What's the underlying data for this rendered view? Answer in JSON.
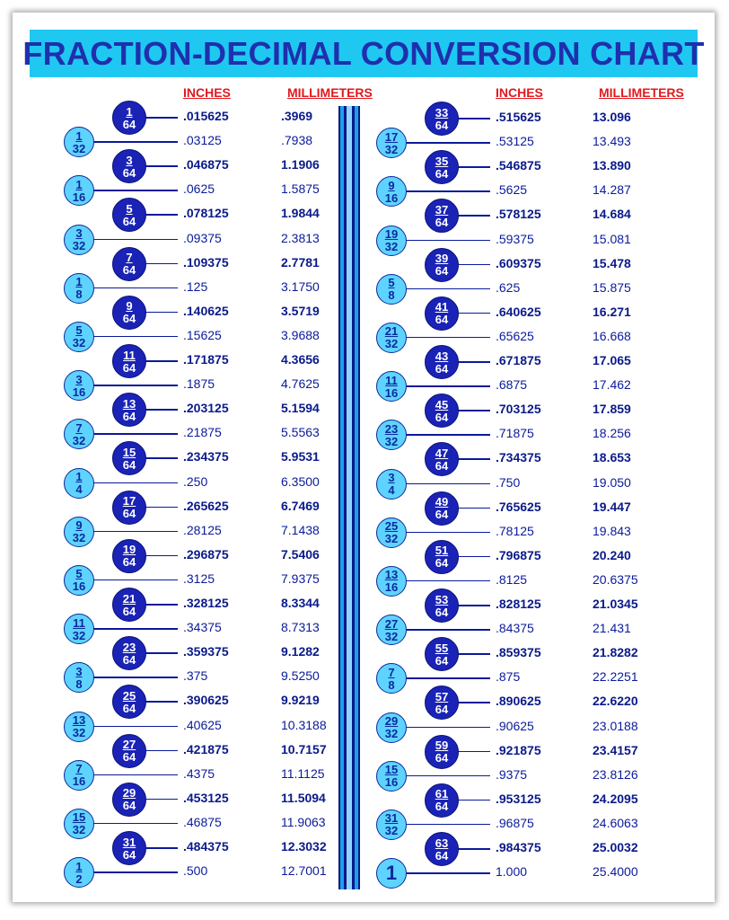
{
  "title": "FRACTION-DECIMAL CONVERSION CHART",
  "headers": {
    "inches": "INCHES",
    "millimeters": "MILLIMETERS"
  },
  "colors": {
    "banner": "#1ec8f0",
    "title": "#1f2fae",
    "header": "#e0191f",
    "odd64_circle": "#1a23b5",
    "other_circle": "#5fd3ff",
    "text": "#0a1a9a"
  },
  "left_rows": [
    {
      "num": "1",
      "den": "64",
      "inches": ".015625",
      "mm": ".3969",
      "bold": true
    },
    {
      "num": "1",
      "den": "32",
      "inches": ".03125",
      "mm": ".7938",
      "bold": false
    },
    {
      "num": "3",
      "den": "64",
      "inches": ".046875",
      "mm": "1.1906",
      "bold": true
    },
    {
      "num": "1",
      "den": "16",
      "inches": ".0625",
      "mm": "1.5875",
      "bold": false
    },
    {
      "num": "5",
      "den": "64",
      "inches": ".078125",
      "mm": "1.9844",
      "bold": true
    },
    {
      "num": "3",
      "den": "32",
      "inches": ".09375",
      "mm": "2.3813",
      "bold": false
    },
    {
      "num": "7",
      "den": "64",
      "inches": ".109375",
      "mm": "2.7781",
      "bold": true
    },
    {
      "num": "1",
      "den": "8",
      "inches": ".125",
      "mm": "3.1750",
      "bold": false
    },
    {
      "num": "9",
      "den": "64",
      "inches": ".140625",
      "mm": "3.5719",
      "bold": true
    },
    {
      "num": "5",
      "den": "32",
      "inches": ".15625",
      "mm": "3.9688",
      "bold": false
    },
    {
      "num": "11",
      "den": "64",
      "inches": ".171875",
      "mm": "4.3656",
      "bold": true
    },
    {
      "num": "3",
      "den": "16",
      "inches": ".1875",
      "mm": "4.7625",
      "bold": false
    },
    {
      "num": "13",
      "den": "64",
      "inches": ".203125",
      "mm": "5.1594",
      "bold": true
    },
    {
      "num": "7",
      "den": "32",
      "inches": ".21875",
      "mm": "5.5563",
      "bold": false
    },
    {
      "num": "15",
      "den": "64",
      "inches": ".234375",
      "mm": "5.9531",
      "bold": true
    },
    {
      "num": "1",
      "den": "4",
      "inches": ".250",
      "mm": "6.3500",
      "bold": false
    },
    {
      "num": "17",
      "den": "64",
      "inches": ".265625",
      "mm": "6.7469",
      "bold": true
    },
    {
      "num": "9",
      "den": "32",
      "inches": ".28125",
      "mm": "7.1438",
      "bold": false
    },
    {
      "num": "19",
      "den": "64",
      "inches": ".296875",
      "mm": "7.5406",
      "bold": true
    },
    {
      "num": "5",
      "den": "16",
      "inches": ".3125",
      "mm": "7.9375",
      "bold": false
    },
    {
      "num": "21",
      "den": "64",
      "inches": ".328125",
      "mm": "8.3344",
      "bold": true
    },
    {
      "num": "11",
      "den": "32",
      "inches": ".34375",
      "mm": "8.7313",
      "bold": false
    },
    {
      "num": "23",
      "den": "64",
      "inches": ".359375",
      "mm": "9.1282",
      "bold": true
    },
    {
      "num": "3",
      "den": "8",
      "inches": ".375",
      "mm": "9.5250",
      "bold": false
    },
    {
      "num": "25",
      "den": "64",
      "inches": ".390625",
      "mm": "9.9219",
      "bold": true
    },
    {
      "num": "13",
      "den": "32",
      "inches": ".40625",
      "mm": "10.3188",
      "bold": false
    },
    {
      "num": "27",
      "den": "64",
      "inches": ".421875",
      "mm": "10.7157",
      "bold": true
    },
    {
      "num": "7",
      "den": "16",
      "inches": ".4375",
      "mm": "11.1125",
      "bold": false
    },
    {
      "num": "29",
      "den": "64",
      "inches": ".453125",
      "mm": "11.5094",
      "bold": true
    },
    {
      "num": "15",
      "den": "32",
      "inches": ".46875",
      "mm": "11.9063",
      "bold": false
    },
    {
      "num": "31",
      "den": "64",
      "inches": ".484375",
      "mm": "12.3032",
      "bold": true
    },
    {
      "num": "1",
      "den": "2",
      "inches": ".500",
      "mm": "12.7001",
      "bold": false
    }
  ],
  "right_rows": [
    {
      "num": "33",
      "den": "64",
      "inches": ".515625",
      "mm": "13.096",
      "bold": true
    },
    {
      "num": "17",
      "den": "32",
      "inches": ".53125",
      "mm": "13.493",
      "bold": false
    },
    {
      "num": "35",
      "den": "64",
      "inches": ".546875",
      "mm": "13.890",
      "bold": true
    },
    {
      "num": "9",
      "den": "16",
      "inches": ".5625",
      "mm": "14.287",
      "bold": false
    },
    {
      "num": "37",
      "den": "64",
      "inches": ".578125",
      "mm": "14.684",
      "bold": true
    },
    {
      "num": "19",
      "den": "32",
      "inches": ".59375",
      "mm": "15.081",
      "bold": false
    },
    {
      "num": "39",
      "den": "64",
      "inches": ".609375",
      "mm": "15.478",
      "bold": true
    },
    {
      "num": "5",
      "den": "8",
      "inches": ".625",
      "mm": "15.875",
      "bold": false
    },
    {
      "num": "41",
      "den": "64",
      "inches": ".640625",
      "mm": "16.271",
      "bold": true
    },
    {
      "num": "21",
      "den": "32",
      "inches": ".65625",
      "mm": "16.668",
      "bold": false
    },
    {
      "num": "43",
      "den": "64",
      "inches": ".671875",
      "mm": "17.065",
      "bold": true
    },
    {
      "num": "11",
      "den": "16",
      "inches": ".6875",
      "mm": "17.462",
      "bold": false
    },
    {
      "num": "45",
      "den": "64",
      "inches": ".703125",
      "mm": "17.859",
      "bold": true
    },
    {
      "num": "23",
      "den": "32",
      "inches": ".71875",
      "mm": "18.256",
      "bold": false
    },
    {
      "num": "47",
      "den": "64",
      "inches": ".734375",
      "mm": "18.653",
      "bold": true
    },
    {
      "num": "3",
      "den": "4",
      "inches": ".750",
      "mm": "19.050",
      "bold": false
    },
    {
      "num": "49",
      "den": "64",
      "inches": ".765625",
      "mm": "19.447",
      "bold": true
    },
    {
      "num": "25",
      "den": "32",
      "inches": ".78125",
      "mm": "19.843",
      "bold": false
    },
    {
      "num": "51",
      "den": "64",
      "inches": ".796875",
      "mm": "20.240",
      "bold": true
    },
    {
      "num": "13",
      "den": "16",
      "inches": ".8125",
      "mm": "20.6375",
      "bold": false
    },
    {
      "num": "53",
      "den": "64",
      "inches": ".828125",
      "mm": "21.0345",
      "bold": true
    },
    {
      "num": "27",
      "den": "32",
      "inches": ".84375",
      "mm": "21.431",
      "bold": false
    },
    {
      "num": "55",
      "den": "64",
      "inches": ".859375",
      "mm": "21.8282",
      "bold": true
    },
    {
      "num": "7",
      "den": "8",
      "inches": ".875",
      "mm": "22.2251",
      "bold": false
    },
    {
      "num": "57",
      "den": "64",
      "inches": ".890625",
      "mm": "22.6220",
      "bold": true
    },
    {
      "num": "29",
      "den": "32",
      "inches": ".90625",
      "mm": "23.0188",
      "bold": false
    },
    {
      "num": "59",
      "den": "64",
      "inches": ".921875",
      "mm": "23.4157",
      "bold": true
    },
    {
      "num": "15",
      "den": "16",
      "inches": ".9375",
      "mm": "23.8126",
      "bold": false
    },
    {
      "num": "61",
      "den": "64",
      "inches": ".953125",
      "mm": "24.2095",
      "bold": true
    },
    {
      "num": "31",
      "den": "32",
      "inches": ".96875",
      "mm": "24.6063",
      "bold": false
    },
    {
      "num": "63",
      "den": "64",
      "inches": ".984375",
      "mm": "25.0032",
      "bold": true
    },
    {
      "whole": "1",
      "inches": "1.000",
      "mm": "25.4000",
      "bold": false
    }
  ]
}
